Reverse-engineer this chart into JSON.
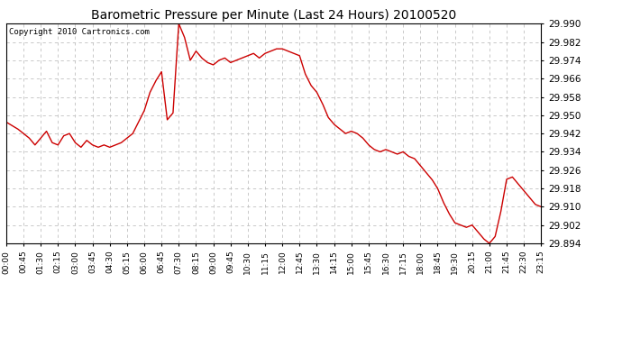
{
  "title": "Barometric Pressure per Minute (Last 24 Hours) 20100520",
  "copyright": "Copyright 2010 Cartronics.com",
  "line_color": "#cc0000",
  "bg_color": "#ffffff",
  "grid_color": "#c0c0c0",
  "ylim": [
    29.894,
    29.99
  ],
  "yticks": [
    29.894,
    29.902,
    29.91,
    29.918,
    29.926,
    29.934,
    29.942,
    29.95,
    29.958,
    29.966,
    29.974,
    29.982,
    29.99
  ],
  "xtick_labels": [
    "00:00",
    "00:45",
    "01:30",
    "02:15",
    "03:00",
    "03:45",
    "04:30",
    "05:15",
    "06:00",
    "06:45",
    "07:30",
    "08:15",
    "09:00",
    "09:45",
    "10:30",
    "11:15",
    "12:00",
    "12:45",
    "13:30",
    "14:15",
    "15:00",
    "15:45",
    "16:30",
    "17:15",
    "18:00",
    "18:45",
    "19:30",
    "20:15",
    "21:00",
    "21:45",
    "22:30",
    "23:15"
  ],
  "key_points": {
    "00:00": 29.947,
    "00:30": 29.944,
    "00:45": 29.942,
    "01:00": 29.94,
    "01:15": 29.937,
    "01:30": 29.94,
    "01:45": 29.943,
    "02:00": 29.938,
    "02:15": 29.937,
    "02:30": 29.941,
    "02:45": 29.942,
    "03:00": 29.938,
    "03:15": 29.936,
    "03:30": 29.939,
    "03:45": 29.937,
    "04:00": 29.936,
    "04:15": 29.937,
    "04:30": 29.936,
    "04:45": 29.937,
    "05:00": 29.938,
    "05:15": 29.94,
    "05:30": 29.942,
    "05:45": 29.947,
    "06:00": 29.952,
    "06:15": 29.96,
    "06:30": 29.965,
    "06:45": 29.969,
    "07:00": 29.948,
    "07:15": 29.951,
    "07:30": 29.99,
    "07:45": 29.984,
    "08:00": 29.974,
    "08:15": 29.978,
    "08:30": 29.975,
    "08:45": 29.973,
    "09:00": 29.972,
    "09:15": 29.974,
    "09:30": 29.975,
    "09:45": 29.973,
    "10:00": 29.974,
    "10:15": 29.975,
    "10:30": 29.976,
    "10:45": 29.977,
    "11:00": 29.975,
    "11:15": 29.977,
    "11:30": 29.978,
    "11:45": 29.979,
    "12:00": 29.979,
    "12:15": 29.978,
    "12:30": 29.977,
    "12:45": 29.976,
    "13:00": 29.968,
    "13:15": 29.963,
    "13:30": 29.96,
    "13:45": 29.955,
    "14:00": 29.949,
    "14:15": 29.946,
    "14:30": 29.944,
    "14:45": 29.942,
    "15:00": 29.943,
    "15:15": 29.942,
    "15:30": 29.94,
    "15:45": 29.937,
    "16:00": 29.935,
    "16:15": 29.934,
    "16:30": 29.935,
    "16:45": 29.934,
    "17:00": 29.933,
    "17:15": 29.934,
    "17:30": 29.932,
    "17:45": 29.931,
    "18:00": 29.928,
    "18:15": 29.925,
    "18:30": 29.922,
    "18:45": 29.918,
    "19:00": 29.912,
    "19:15": 29.907,
    "19:30": 29.903,
    "19:45": 29.902,
    "20:00": 29.901,
    "20:15": 29.902,
    "20:30": 29.899,
    "20:45": 29.896,
    "21:00": 29.894,
    "21:15": 29.897,
    "21:30": 29.908,
    "21:45": 29.922,
    "22:00": 29.923,
    "22:15": 29.92,
    "22:30": 29.917,
    "22:45": 29.914,
    "23:00": 29.911,
    "23:15": 29.91
  }
}
